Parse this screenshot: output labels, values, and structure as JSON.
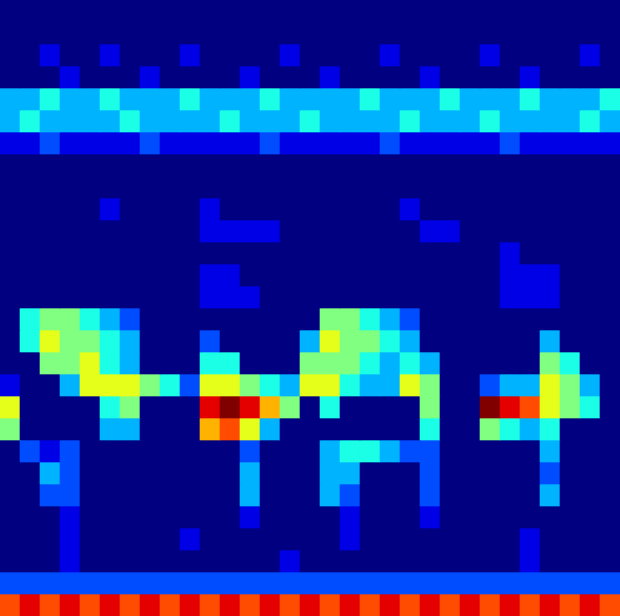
{
  "chart_data": {
    "type": "heatmap",
    "color": "jet",
    "zlim": [
      0,
      10
    ],
    "tick_labels": false,
    "cells": [
      [
        0,
        0,
        0,
        0,
        0,
        0,
        0,
        0,
        0,
        0,
        0,
        0,
        0,
        0,
        0,
        0,
        0,
        0,
        0,
        0,
        0,
        0,
        0,
        0,
        0,
        0,
        0,
        0,
        0,
        0,
        0
      ],
      [
        0,
        0,
        0,
        0,
        0,
        0,
        0,
        0,
        0,
        0,
        0,
        0,
        0,
        0,
        0,
        0,
        0,
        0,
        0,
        0,
        0,
        0,
        0,
        0,
        0,
        0,
        0,
        0,
        0,
        0,
        0
      ],
      [
        0,
        0,
        1,
        0,
        0,
        1,
        0,
        0,
        0,
        1,
        0,
        0,
        0,
        0,
        1,
        0,
        0,
        0,
        0,
        1,
        0,
        0,
        0,
        0,
        1,
        0,
        0,
        0,
        0,
        1,
        0
      ],
      [
        0,
        0,
        0,
        1,
        0,
        0,
        0,
        1,
        0,
        0,
        0,
        0,
        1,
        0,
        0,
        0,
        1,
        0,
        0,
        0,
        0,
        1,
        0,
        0,
        0,
        0,
        1,
        0,
        0,
        0,
        0
      ],
      [
        3,
        3,
        4,
        3,
        3,
        4,
        3,
        3,
        3,
        4,
        3,
        3,
        3,
        4,
        3,
        3,
        3,
        3,
        4,
        3,
        3,
        3,
        4,
        3,
        3,
        3,
        4,
        3,
        3,
        3,
        4
      ],
      [
        3,
        4,
        3,
        3,
        3,
        3,
        4,
        3,
        3,
        3,
        3,
        4,
        3,
        3,
        3,
        4,
        3,
        3,
        3,
        3,
        4,
        3,
        3,
        3,
        4,
        3,
        3,
        3,
        3,
        4,
        3
      ],
      [
        1,
        1,
        2,
        1,
        1,
        1,
        1,
        2,
        1,
        1,
        1,
        1,
        1,
        2,
        1,
        1,
        1,
        1,
        1,
        2,
        1,
        1,
        1,
        1,
        1,
        2,
        1,
        1,
        1,
        1,
        1
      ],
      [
        0,
        0,
        0,
        0,
        0,
        0,
        0,
        0,
        0,
        0,
        0,
        0,
        0,
        0,
        0,
        0,
        0,
        0,
        0,
        0,
        0,
        0,
        0,
        0,
        0,
        0,
        0,
        0,
        0,
        0,
        0
      ],
      [
        0,
        0,
        0,
        0,
        0,
        0,
        0,
        0,
        0,
        0,
        0,
        0,
        0,
        0,
        0,
        0,
        0,
        0,
        0,
        0,
        0,
        0,
        0,
        0,
        0,
        0,
        0,
        0,
        0,
        0,
        0
      ],
      [
        0,
        0,
        0,
        0,
        0,
        1,
        0,
        0,
        0,
        0,
        1,
        0,
        0,
        0,
        0,
        0,
        0,
        0,
        0,
        0,
        1,
        0,
        0,
        0,
        0,
        0,
        0,
        0,
        0,
        0,
        0
      ],
      [
        0,
        0,
        0,
        0,
        0,
        0,
        0,
        0,
        0,
        0,
        1,
        1,
        1,
        1,
        0,
        0,
        0,
        0,
        0,
        0,
        0,
        1,
        1,
        0,
        0,
        0,
        0,
        0,
        0,
        0,
        0
      ],
      [
        0,
        0,
        0,
        0,
        0,
        0,
        0,
        0,
        0,
        0,
        0,
        0,
        0,
        0,
        0,
        0,
        0,
        0,
        0,
        0,
        0,
        0,
        0,
        0,
        0,
        1,
        0,
        0,
        0,
        0,
        0
      ],
      [
        0,
        0,
        0,
        0,
        0,
        0,
        0,
        0,
        0,
        0,
        1,
        1,
        0,
        0,
        0,
        0,
        0,
        0,
        0,
        0,
        0,
        0,
        0,
        0,
        0,
        1,
        1,
        1,
        0,
        0,
        0
      ],
      [
        0,
        0,
        0,
        0,
        0,
        0,
        0,
        0,
        0,
        0,
        1,
        1,
        1,
        0,
        0,
        0,
        0,
        0,
        0,
        0,
        0,
        0,
        0,
        0,
        0,
        1,
        1,
        1,
        0,
        0,
        0
      ],
      [
        0,
        4,
        5,
        5,
        4,
        3,
        2,
        0,
        0,
        0,
        0,
        0,
        0,
        0,
        0,
        0,
        5,
        5,
        4,
        3,
        2,
        0,
        0,
        0,
        0,
        0,
        0,
        0,
        0,
        0,
        0
      ],
      [
        0,
        4,
        6,
        5,
        5,
        4,
        3,
        0,
        0,
        0,
        2,
        0,
        0,
        0,
        0,
        3,
        6,
        5,
        5,
        4,
        3,
        0,
        0,
        0,
        0,
        0,
        0,
        3,
        0,
        0,
        0
      ],
      [
        0,
        0,
        5,
        5,
        6,
        4,
        3,
        0,
        0,
        0,
        4,
        4,
        0,
        0,
        0,
        5,
        5,
        5,
        4,
        3,
        4,
        3,
        0,
        0,
        0,
        0,
        0,
        5,
        4,
        0,
        0
      ],
      [
        1,
        0,
        0,
        3,
        6,
        6,
        6,
        5,
        4,
        2,
        6,
        6,
        5,
        4,
        3,
        6,
        6,
        4,
        3,
        3,
        6,
        5,
        0,
        0,
        2,
        3,
        3,
        6,
        5,
        3,
        0
      ],
      [
        6,
        0,
        0,
        0,
        0,
        4,
        5,
        0,
        0,
        0,
        9,
        10,
        9,
        7,
        5,
        0,
        4,
        0,
        0,
        0,
        0,
        5,
        0,
        0,
        10,
        9,
        8,
        6,
        5,
        4,
        0
      ],
      [
        5,
        0,
        0,
        0,
        0,
        3,
        3,
        0,
        0,
        0,
        7,
        8,
        6,
        3,
        0,
        0,
        0,
        0,
        0,
        0,
        0,
        4,
        0,
        0,
        5,
        4,
        3,
        4,
        0,
        0,
        0
      ],
      [
        0,
        2,
        1,
        2,
        0,
        0,
        0,
        0,
        0,
        0,
        0,
        0,
        2,
        0,
        0,
        0,
        3,
        4,
        4,
        3,
        2,
        2,
        0,
        0,
        0,
        0,
        0,
        3,
        0,
        0,
        0
      ],
      [
        0,
        0,
        3,
        2,
        0,
        0,
        0,
        0,
        0,
        0,
        0,
        0,
        3,
        0,
        0,
        0,
        3,
        3,
        0,
        0,
        0,
        2,
        0,
        0,
        0,
        0,
        0,
        2,
        0,
        0,
        0
      ],
      [
        0,
        0,
        2,
        2,
        0,
        0,
        0,
        0,
        0,
        0,
        0,
        0,
        3,
        0,
        0,
        0,
        3,
        2,
        0,
        0,
        0,
        2,
        0,
        0,
        0,
        0,
        0,
        3,
        0,
        0,
        0
      ],
      [
        0,
        0,
        0,
        1,
        0,
        0,
        0,
        0,
        0,
        0,
        0,
        0,
        1,
        0,
        0,
        0,
        0,
        1,
        0,
        0,
        0,
        1,
        0,
        0,
        0,
        0,
        0,
        0,
        0,
        0,
        0
      ],
      [
        0,
        0,
        0,
        1,
        0,
        0,
        0,
        0,
        0,
        1,
        0,
        0,
        0,
        0,
        0,
        0,
        0,
        1,
        0,
        0,
        0,
        0,
        0,
        0,
        0,
        0,
        1,
        0,
        0,
        0,
        0
      ],
      [
        0,
        0,
        0,
        1,
        0,
        0,
        0,
        0,
        0,
        0,
        0,
        0,
        0,
        0,
        1,
        0,
        0,
        0,
        0,
        0,
        0,
        0,
        0,
        0,
        0,
        0,
        1,
        0,
        0,
        0,
        0
      ],
      [
        2,
        2,
        2,
        2,
        2,
        2,
        2,
        2,
        2,
        2,
        2,
        2,
        2,
        2,
        2,
        2,
        2,
        2,
        2,
        2,
        2,
        2,
        2,
        2,
        2,
        2,
        2,
        2,
        2,
        2,
        2
      ],
      [
        8,
        9,
        8,
        9,
        8,
        9,
        8,
        9,
        8,
        9,
        8,
        9,
        8,
        9,
        8,
        9,
        8,
        9,
        8,
        9,
        8,
        9,
        8,
        9,
        8,
        9,
        8,
        9,
        8,
        9,
        8
      ]
    ]
  }
}
